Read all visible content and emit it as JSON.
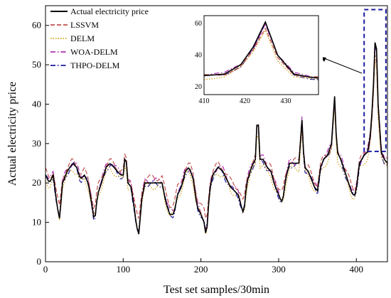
{
  "chart_data": {
    "type": "line",
    "xlabel": "Test set samples/30min",
    "ylabel": "Actual electricity price",
    "xlim": [
      0,
      440
    ],
    "ylim": [
      0,
      65
    ],
    "xticks": [
      0,
      100,
      200,
      300,
      400
    ],
    "yticks": [
      0,
      10,
      20,
      30,
      40,
      50,
      60
    ],
    "grid": false,
    "legend_position": "top-left",
    "series": [
      {
        "name": "Actual electricity price",
        "color": "#000000",
        "dash": "solid",
        "offset": 0
      },
      {
        "name": "LSSVM",
        "color": "#c0504d",
        "dash": "dashed",
        "offset": 1.2
      },
      {
        "name": "DELM",
        "color": "#d4a017",
        "dash": "dotted",
        "offset": -1.0
      },
      {
        "name": "WOA-DELM",
        "color": "#b030b0",
        "dash": "dashdot",
        "offset": 0.5
      },
      {
        "name": "THPO-DELM",
        "color": "#1a1aa0",
        "dash": "dashdot",
        "offset": -0.3
      }
    ],
    "actual_keypoints": [
      [
        0,
        22
      ],
      [
        5,
        20
      ],
      [
        10,
        22
      ],
      [
        15,
        14
      ],
      [
        18,
        11
      ],
      [
        22,
        20
      ],
      [
        28,
        23
      ],
      [
        35,
        25
      ],
      [
        40,
        24
      ],
      [
        45,
        21
      ],
      [
        50,
        22
      ],
      [
        55,
        20
      ],
      [
        60,
        14
      ],
      [
        63,
        10
      ],
      [
        67,
        17
      ],
      [
        72,
        20
      ],
      [
        78,
        24
      ],
      [
        83,
        25
      ],
      [
        88,
        24
      ],
      [
        92,
        23
      ],
      [
        97,
        22
      ],
      [
        100,
        22
      ],
      [
        103,
        28
      ],
      [
        106,
        20
      ],
      [
        110,
        19
      ],
      [
        114,
        14
      ],
      [
        117,
        9
      ],
      [
        120,
        7
      ],
      [
        124,
        16
      ],
      [
        128,
        20
      ],
      [
        135,
        20
      ],
      [
        145,
        20
      ],
      [
        150,
        20
      ],
      [
        155,
        15
      ],
      [
        160,
        12
      ],
      [
        165,
        12
      ],
      [
        170,
        17
      ],
      [
        175,
        19
      ],
      [
        180,
        23
      ],
      [
        185,
        24
      ],
      [
        190,
        21
      ],
      [
        195,
        14
      ],
      [
        200,
        12
      ],
      [
        204,
        10
      ],
      [
        207,
        6
      ],
      [
        211,
        18
      ],
      [
        215,
        22
      ],
      [
        222,
        24
      ],
      [
        228,
        23
      ],
      [
        233,
        21
      ],
      [
        238,
        19
      ],
      [
        243,
        18
      ],
      [
        248,
        17
      ],
      [
        252,
        14
      ],
      [
        255,
        12
      ],
      [
        259,
        20
      ],
      [
        265,
        24
      ],
      [
        270,
        26
      ],
      [
        273,
        39
      ],
      [
        276,
        26
      ],
      [
        280,
        26
      ],
      [
        285,
        24
      ],
      [
        290,
        23
      ],
      [
        294,
        20
      ],
      [
        298,
        18
      ],
      [
        302,
        16
      ],
      [
        305,
        15
      ],
      [
        309,
        21
      ],
      [
        314,
        25
      ],
      [
        320,
        25
      ],
      [
        326,
        25
      ],
      [
        330,
        36
      ],
      [
        333,
        24
      ],
      [
        338,
        23
      ],
      [
        342,
        21
      ],
      [
        346,
        19
      ],
      [
        350,
        18
      ],
      [
        354,
        24
      ],
      [
        358,
        26
      ],
      [
        363,
        27
      ],
      [
        368,
        30
      ],
      [
        372,
        42
      ],
      [
        375,
        28
      ],
      [
        380,
        26
      ],
      [
        385,
        23
      ],
      [
        390,
        20
      ],
      [
        395,
        17
      ],
      [
        399,
        17
      ],
      [
        404,
        25
      ],
      [
        410,
        27
      ],
      [
        415,
        28
      ],
      [
        419,
        34
      ],
      [
        422,
        45
      ],
      [
        425,
        61
      ],
      [
        428,
        40
      ],
      [
        432,
        28
      ],
      [
        436,
        26
      ],
      [
        440,
        25
      ]
    ],
    "inset": {
      "xlim": [
        410,
        438
      ],
      "ylim": [
        15,
        65
      ],
      "xticks": [
        410,
        420,
        430
      ],
      "yticks": [
        20,
        40,
        60
      ]
    }
  }
}
